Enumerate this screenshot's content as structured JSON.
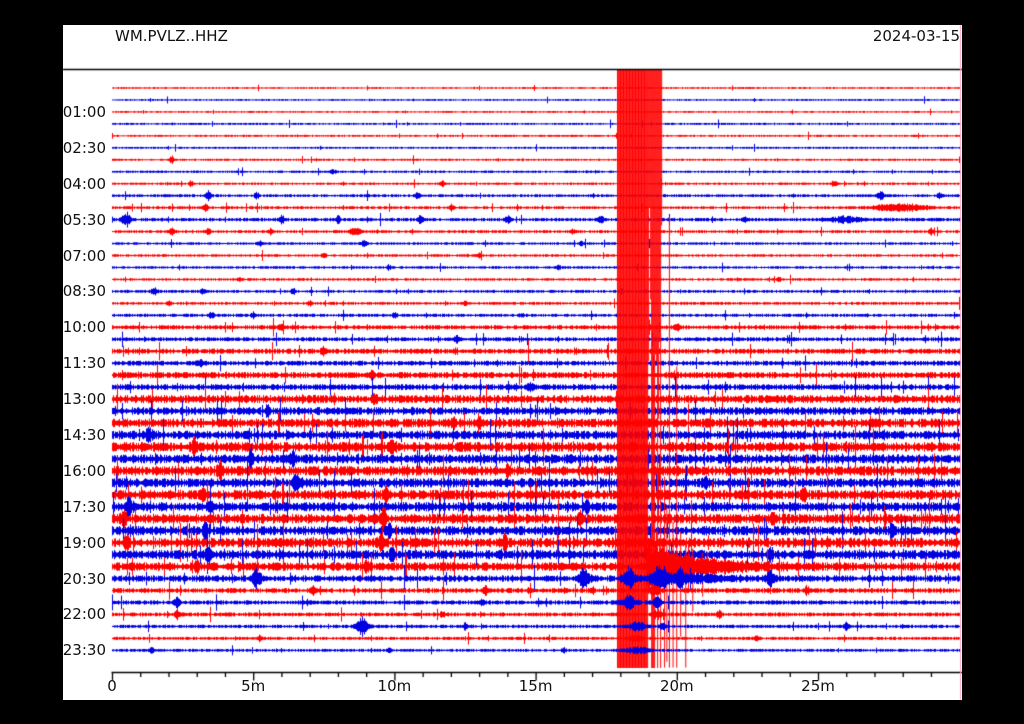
{
  "header": {
    "title": "WM.PVLZ..HHZ",
    "date": "2024-03-15"
  },
  "chart_data": {
    "type": "helicorder",
    "station": "WM.PVLZ..HHZ",
    "date": "2024-03-15",
    "trace_duration_min": 30,
    "rows_count": 48,
    "x_axis": {
      "range_min": [
        0,
        30
      ],
      "minor_tick_every_min": 1,
      "major_ticks": [
        {
          "label": "0",
          "min": 0
        },
        {
          "label": "5m",
          "min": 5
        },
        {
          "label": "10m",
          "min": 10
        },
        {
          "label": "15m",
          "min": 15
        },
        {
          "label": "20m",
          "min": 20
        },
        {
          "label": "25m",
          "min": 25
        }
      ]
    },
    "y_axis": {
      "labels": [
        {
          "label": "01:00",
          "row": 2
        },
        {
          "label": "02:30",
          "row": 5
        },
        {
          "label": "04:00",
          "row": 8
        },
        {
          "label": "05:30",
          "row": 11
        },
        {
          "label": "07:00",
          "row": 14
        },
        {
          "label": "08:30",
          "row": 17
        },
        {
          "label": "10:00",
          "row": 20
        },
        {
          "label": "11:30",
          "row": 23
        },
        {
          "label": "13:00",
          "row": 26
        },
        {
          "label": "14:30",
          "row": 29
        },
        {
          "label": "16:00",
          "row": 32
        },
        {
          "label": "17:30",
          "row": 35
        },
        {
          "label": "19:00",
          "row": 38
        },
        {
          "label": "20:30",
          "row": 41
        },
        {
          "label": "22:00",
          "row": 44
        },
        {
          "label": "23:30",
          "row": 47
        }
      ]
    },
    "colors": {
      "red_trace": "#ff0000",
      "blue_trace": "#0000e0",
      "text": "#111111",
      "frame": "#000000",
      "background": "#ffffff",
      "page": "#000000",
      "edge_artifact": "#ff9ec0"
    },
    "rows": [
      {
        "t": "00:00",
        "c": "r",
        "a": 0.7,
        "s": 0.012,
        "b": []
      },
      {
        "t": "00:30",
        "c": "b",
        "a": 0.7,
        "s": 0.012,
        "b": []
      },
      {
        "t": "01:00",
        "c": "r",
        "a": 0.7,
        "s": 0.012,
        "b": []
      },
      {
        "t": "01:30",
        "c": "b",
        "a": 0.8,
        "s": 0.012,
        "b": []
      },
      {
        "t": "02:00",
        "c": "r",
        "a": 0.8,
        "s": 0.012,
        "b": []
      },
      {
        "t": "02:30",
        "c": "b",
        "a": 0.8,
        "s": 0.012,
        "b": []
      },
      {
        "t": "03:00",
        "c": "r",
        "a": 0.8,
        "s": 0.012,
        "b": [
          [
            2.1,
            4.5,
            0.08
          ]
        ]
      },
      {
        "t": "03:30",
        "c": "b",
        "a": 0.9,
        "s": 0.012,
        "b": [
          [
            7.8,
            2.5,
            0.1
          ]
        ]
      },
      {
        "t": "04:00",
        "c": "r",
        "a": 0.9,
        "s": 0.012,
        "b": [
          [
            2.8,
            3,
            0.08
          ],
          [
            11.7,
            3.5,
            0.08
          ],
          [
            25.6,
            2.5,
            0.1
          ]
        ]
      },
      {
        "t": "04:30",
        "c": "b",
        "a": 1.1,
        "s": 0.015,
        "b": [
          [
            3.4,
            4,
            0.1
          ],
          [
            5.1,
            3.5,
            0.08
          ],
          [
            10.8,
            3,
            0.08
          ],
          [
            27.2,
            4,
            0.12
          ],
          [
            29.3,
            3,
            0.08
          ]
        ]
      },
      {
        "t": "05:00",
        "c": "r",
        "a": 1.1,
        "s": 0.015,
        "b": [
          [
            3.3,
            3.5,
            0.08
          ],
          [
            12,
            3,
            0.08
          ],
          [
            27.9,
            3.5,
            0.9
          ]
        ]
      },
      {
        "t": "05:30",
        "c": "b",
        "a": 1.3,
        "s": 0.018,
        "b": [
          [
            0.5,
            6.5,
            0.15
          ],
          [
            6,
            4,
            0.1
          ],
          [
            8,
            3.5,
            0.08
          ],
          [
            10.9,
            4,
            0.1
          ],
          [
            14,
            3.5,
            0.1
          ],
          [
            17.3,
            4,
            0.08
          ],
          [
            22.4,
            3.5,
            0.08
          ],
          [
            26,
            2.5,
            0.7
          ]
        ]
      },
      {
        "t": "06:00",
        "c": "r",
        "a": 1.1,
        "s": 0.015,
        "b": [
          [
            2.1,
            3,
            0.1
          ],
          [
            3.4,
            3.5,
            0.08
          ],
          [
            5.6,
            3,
            0.08
          ],
          [
            8.6,
            3.5,
            0.2
          ],
          [
            16.3,
            3,
            0.08
          ],
          [
            29,
            3.5,
            0.08
          ]
        ]
      },
      {
        "t": "06:30",
        "c": "b",
        "a": 1.0,
        "s": 0.012,
        "b": [
          [
            5.2,
            2.5,
            0.08
          ],
          [
            8.9,
            3,
            0.1
          ],
          [
            16.6,
            2.5,
            0.08
          ]
        ]
      },
      {
        "t": "07:00",
        "c": "r",
        "a": 1.0,
        "s": 0.012,
        "b": [
          [
            7.5,
            2,
            0.1
          ],
          [
            13,
            2.5,
            0.08
          ]
        ]
      },
      {
        "t": "07:30",
        "c": "b",
        "a": 1.0,
        "s": 0.012,
        "b": [
          [
            9.8,
            2.5,
            0.08
          ],
          [
            15.8,
            2,
            0.08
          ]
        ]
      },
      {
        "t": "08:00",
        "c": "r",
        "a": 1.0,
        "s": 0.012,
        "b": [
          [
            4.5,
            2,
            0.08
          ],
          [
            23.6,
            2.5,
            0.08
          ]
        ]
      },
      {
        "t": "08:30",
        "c": "b",
        "a": 1.1,
        "s": 0.015,
        "b": [
          [
            1.5,
            3,
            0.12
          ],
          [
            3.2,
            2.5,
            0.08
          ],
          [
            6.4,
            3,
            0.08
          ],
          [
            18,
            2.5,
            0.08
          ]
        ]
      },
      {
        "t": "09:00",
        "c": "r",
        "a": 1.1,
        "s": 0.015,
        "b": [
          [
            2,
            2.5,
            0.08
          ],
          [
            7,
            2.5,
            0.08
          ],
          [
            12.5,
            2.5,
            0.08
          ]
        ]
      },
      {
        "t": "09:30",
        "c": "b",
        "a": 1.2,
        "s": 0.015,
        "b": [
          [
            3.5,
            3,
            0.1
          ],
          [
            5,
            2.5,
            0.08
          ],
          [
            10,
            3,
            0.08
          ],
          [
            14.5,
            2.5,
            0.08
          ]
        ]
      },
      {
        "t": "10:00",
        "c": "r",
        "a": 1.6,
        "s": 0.02,
        "b": [
          [
            6,
            3,
            0.1
          ],
          [
            20,
            3,
            0.1
          ]
        ]
      },
      {
        "t": "10:30",
        "c": "b",
        "a": 1.5,
        "s": 0.02,
        "b": [
          [
            12.2,
            3,
            0.1
          ]
        ]
      },
      {
        "t": "11:00",
        "c": "r",
        "a": 1.9,
        "s": 0.02,
        "b": [
          [
            7.5,
            3.5,
            0.1
          ]
        ]
      },
      {
        "t": "11:30",
        "c": "b",
        "a": 1.8,
        "s": 0.02,
        "b": [
          [
            3.1,
            3.5,
            0.1
          ]
        ]
      },
      {
        "t": "12:00",
        "c": "r",
        "a": 2.3,
        "s": 0.025,
        "b": [
          [
            9.2,
            4,
            0.1
          ]
        ]
      },
      {
        "t": "12:30",
        "c": "b",
        "a": 2.2,
        "s": 0.025,
        "b": [
          [
            14.8,
            4,
            0.1
          ]
        ]
      },
      {
        "t": "13:00",
        "c": "r",
        "a": 3.0,
        "s": 0.03,
        "b": [
          [
            9.3,
            6,
            0.08
          ]
        ]
      },
      {
        "t": "13:30",
        "c": "b",
        "a": 2.9,
        "s": 0.03,
        "b": [
          [
            5.5,
            5,
            0.08
          ]
        ]
      },
      {
        "t": "14:00",
        "c": "r",
        "a": 3.3,
        "s": 0.035,
        "b": [
          [
            12.1,
            6,
            0.08
          ]
        ]
      },
      {
        "t": "14:30",
        "c": "b",
        "a": 3.2,
        "s": 0.035,
        "b": [
          [
            1.3,
            6,
            0.1
          ]
        ]
      },
      {
        "t": "15:00",
        "c": "r",
        "a": 3.6,
        "s": 0.035,
        "b": [
          [
            2.9,
            8,
            0.08
          ],
          [
            9.9,
            7,
            0.08
          ]
        ]
      },
      {
        "t": "15:30",
        "c": "b",
        "a": 3.4,
        "s": 0.035,
        "b": [
          [
            4.9,
            7,
            0.08
          ],
          [
            6.4,
            6,
            0.1
          ]
        ]
      },
      {
        "t": "16:00",
        "c": "r",
        "a": 3.6,
        "s": 0.035,
        "b": [
          [
            3.8,
            8,
            0.08
          ],
          [
            14,
            6,
            0.08
          ]
        ]
      },
      {
        "t": "16:30",
        "c": "b",
        "a": 3.4,
        "s": 0.035,
        "b": [
          [
            6.5,
            7,
            0.08
          ],
          [
            21,
            6,
            0.08
          ]
        ]
      },
      {
        "t": "17:00",
        "c": "r",
        "a": 3.6,
        "s": 0.035,
        "b": [
          [
            3.2,
            8,
            0.08
          ],
          [
            9.7,
            7,
            0.08
          ],
          [
            24.5,
            6,
            0.08
          ]
        ]
      },
      {
        "t": "17:30",
        "c": "b",
        "a": 3.4,
        "s": 0.035,
        "b": [
          [
            0.6,
            9,
            0.12
          ],
          [
            3.5,
            7,
            0.08
          ],
          [
            16.8,
            6,
            0.08
          ]
        ]
      },
      {
        "t": "18:00",
        "c": "r",
        "a": 3.6,
        "s": 0.035,
        "b": [
          [
            0.4,
            8,
            0.1
          ],
          [
            9.6,
            8,
            0.08
          ],
          [
            16.6,
            7,
            0.08
          ],
          [
            23.4,
            7,
            0.08
          ]
        ]
      },
      {
        "t": "18:30",
        "c": "b",
        "a": 3.4,
        "s": 0.035,
        "b": [
          [
            3.3,
            8,
            0.08
          ],
          [
            9.8,
            7,
            0.08
          ],
          [
            27.6,
            7,
            0.08
          ]
        ]
      },
      {
        "t": "19:00",
        "c": "r",
        "a": 3.6,
        "s": 0.035,
        "b": [
          [
            0.5,
            8,
            0.08
          ],
          [
            9.5,
            7,
            0.08
          ],
          [
            13.9,
            6,
            0.08
          ]
        ]
      },
      {
        "t": "19:30",
        "c": "b",
        "a": 3.4,
        "s": 0.035,
        "b": [
          [
            3.4,
            9,
            0.08
          ],
          [
            9.9,
            7,
            0.08
          ],
          [
            23.3,
            8,
            0.08
          ]
        ]
      },
      {
        "t": "20:00",
        "c": "r",
        "a": 3.2,
        "s": 0.03,
        "b": [
          [
            3,
            7,
            0.08
          ],
          [
            9,
            6,
            0.08
          ]
        ]
      },
      {
        "t": "20:30",
        "c": "b",
        "a": 2.4,
        "s": 0.025,
        "b": [
          [
            5.1,
            8,
            0.15
          ],
          [
            16.7,
            9,
            0.2
          ],
          [
            18.3,
            10,
            0.2
          ],
          [
            19.4,
            12,
            0.25
          ],
          [
            20.1,
            7,
            0.15
          ],
          [
            23.3,
            7,
            0.15
          ],
          [
            20.5,
            3.5,
            1.2
          ]
        ]
      },
      {
        "t": "21:00",
        "c": "r",
        "a": 1.8,
        "s": 0.02,
        "b": [
          [
            7.1,
            4,
            0.08
          ],
          [
            13.2,
            4,
            0.1
          ],
          [
            17,
            3,
            0.08
          ],
          [
            19.2,
            4,
            0.2
          ],
          [
            24.6,
            4,
            0.08
          ]
        ]
      },
      {
        "t": "21:30",
        "c": "b",
        "a": 1.6,
        "s": 0.02,
        "b": [
          [
            2.3,
            5,
            0.1
          ],
          [
            13.1,
            4,
            0.08
          ],
          [
            18.3,
            6,
            0.25
          ],
          [
            19.3,
            5,
            0.15
          ]
        ]
      },
      {
        "t": "22:00",
        "c": "r",
        "a": 1.5,
        "s": 0.02,
        "b": [
          [
            2.3,
            4,
            0.08
          ],
          [
            11.7,
            3,
            0.08
          ],
          [
            19.3,
            4,
            0.15
          ],
          [
            21.5,
            3.5,
            0.08
          ]
        ]
      },
      {
        "t": "22:30",
        "c": "b",
        "a": 1.3,
        "s": 0.018,
        "b": [
          [
            8.85,
            9,
            0.2
          ],
          [
            12.5,
            3,
            0.08
          ],
          [
            18.6,
            4,
            0.3
          ],
          [
            19.5,
            4,
            0.1
          ],
          [
            26,
            4,
            0.08
          ]
        ]
      },
      {
        "t": "23:00",
        "c": "r",
        "a": 1.2,
        "s": 0.015,
        "b": [
          [
            5.2,
            3,
            0.08
          ],
          [
            18.5,
            3.5,
            0.2
          ],
          [
            22.8,
            3,
            0.08
          ]
        ]
      },
      {
        "t": "23:30",
        "c": "b",
        "a": 1.1,
        "s": 0.015,
        "b": [
          [
            1.4,
            3,
            0.1
          ],
          [
            9.8,
            2.5,
            0.08
          ],
          [
            16,
            2.5,
            0.08
          ],
          [
            18.6,
            3,
            0.4
          ]
        ]
      }
    ],
    "event": {
      "row_index": 40,
      "row_time": "20:00",
      "start_min": 17.9,
      "dense_end_min": 18.95,
      "sparse_end_min": 19.45,
      "coda_start_min": 18.9,
      "coda_amp": 26,
      "coda_decay_min": 1.5,
      "coda_end_min": 24,
      "spikes": [
        [
          19.55,
          90,
          101
        ],
        [
          19.63,
          60,
          95
        ],
        [
          19.72,
          350,
          101
        ],
        [
          19.85,
          45,
          101
        ],
        [
          19.98,
          200,
          101
        ],
        [
          20.12,
          35,
          70
        ],
        [
          20.3,
          25,
          101
        ],
        [
          20.55,
          18,
          45
        ],
        [
          20.9,
          14,
          30
        ]
      ],
      "description": "Large clipped earthquake signal on the 20:00 trace saturating the plot vertically around 18-19.5 minutes"
    }
  }
}
